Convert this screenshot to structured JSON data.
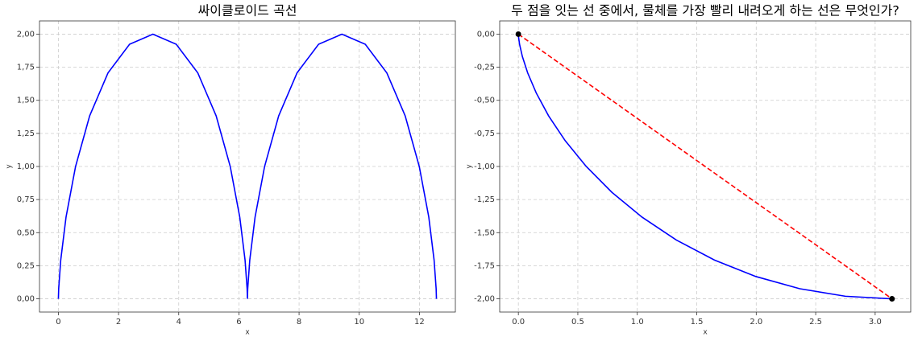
{
  "chart_data": [
    {
      "type": "line",
      "title": "싸이클로이드 곡선",
      "x_label": "x",
      "y_label": "y",
      "grid": true,
      "xlim": [
        -0.628,
        13.195
      ],
      "ylim": [
        -0.1,
        2.1
      ],
      "xticks": [
        0,
        2,
        4,
        6,
        8,
        10,
        12
      ],
      "yticks": [
        {
          "value": 0,
          "label": "0,00"
        },
        {
          "value": 0.25,
          "label": "0,25"
        },
        {
          "value": 0.5,
          "label": "0,50"
        },
        {
          "value": 0.75,
          "label": "0,75"
        },
        {
          "value": 1,
          "label": "1,00"
        },
        {
          "value": 1.25,
          "label": "1,25"
        },
        {
          "value": 1.5,
          "label": "1,50"
        },
        {
          "value": 1.75,
          "label": "1,75"
        },
        {
          "value": 2,
          "label": "2,00"
        }
      ],
      "series": [
        {
          "color": "#0000ff",
          "style": "solid",
          "x": [
            0,
            0.01,
            0.0783,
            0.2542,
            0.5708,
            1.0396,
            1.6491,
            2.3662,
            3.1416,
            3.917,
            4.6341,
            5.2436,
            5.7124,
            6.029,
            6.2049,
            6.2732,
            6.2832,
            6.2932,
            6.3615,
            6.5374,
            6.854,
            7.3228,
            7.9323,
            8.6494,
            9.4248,
            10.2002,
            10.9173,
            11.5268,
            11.9956,
            12.3122,
            12.4881,
            12.5564,
            12.5664
          ],
          "values": [
            0,
            0.0761,
            0.2929,
            0.6173,
            1,
            1.3827,
            1.7071,
            1.9239,
            2,
            1.9239,
            1.7071,
            1.3827,
            1,
            0.6173,
            0.2929,
            0.0761,
            0,
            0.0761,
            0.2929,
            0.6173,
            1,
            1.3827,
            1.7071,
            1.9239,
            2,
            1.9239,
            1.7071,
            1.3827,
            1,
            0.6173,
            0.2929,
            0.0761,
            0
          ]
        }
      ]
    },
    {
      "type": "line",
      "title": "두 점을 잇는 선 중에서, 물체를 가장 빨리 내려오게 하는 선은 무엇인가?",
      "x_label": "x",
      "y_label": "y",
      "grid": true,
      "xlim": [
        -0.157,
        3.299
      ],
      "ylim": [
        -2.1,
        0.1
      ],
      "xticks": [
        {
          "value": 0,
          "label": "0.0"
        },
        0.5,
        {
          "value": 1,
          "label": "1.0"
        },
        1.5,
        {
          "value": 2,
          "label": "2.0"
        },
        2.5,
        {
          "value": 3,
          "label": "3.0"
        }
      ],
      "yticks": [
        {
          "value": 0,
          "label": "0,00"
        },
        {
          "value": -0.25,
          "label": "-0,25"
        },
        {
          "value": -0.5,
          "label": "-0,50"
        },
        {
          "value": -0.75,
          "label": "-0,75"
        },
        {
          "value": -1,
          "label": "-1,00"
        },
        {
          "value": -1.25,
          "label": "-1,25"
        },
        {
          "value": -1.5,
          "label": "-1,50"
        },
        {
          "value": -1.75,
          "label": "-1,75"
        },
        {
          "value": -2,
          "label": "-2,00"
        }
      ],
      "series": [
        {
          "color": "#0000ff",
          "style": "solid",
          "x": [
            0,
            0.0013,
            0.01,
            0.0335,
            0.0783,
            0.1503,
            0.2542,
            0.3937,
            0.5708,
            0.7864,
            1.0396,
            1.3283,
            1.6491,
            1.9969,
            2.3662,
            2.7501,
            3.1416
          ],
          "values": [
            0,
            -0.0192,
            -0.0761,
            -0.1685,
            -0.2929,
            -0.4444,
            -0.6173,
            -0.8049,
            -1,
            -1.1951,
            -1.3827,
            -1.5556,
            -1.7071,
            -1.8315,
            -1.9239,
            -1.9808,
            -2
          ]
        },
        {
          "color": "#ff0000",
          "style": "dashed",
          "x": [
            0,
            3.1416
          ],
          "values": [
            0,
            -2
          ]
        },
        {
          "color": "#000000",
          "style": "points",
          "x": [
            0,
            3.1416
          ],
          "values": [
            0,
            -2
          ]
        }
      ]
    }
  ]
}
